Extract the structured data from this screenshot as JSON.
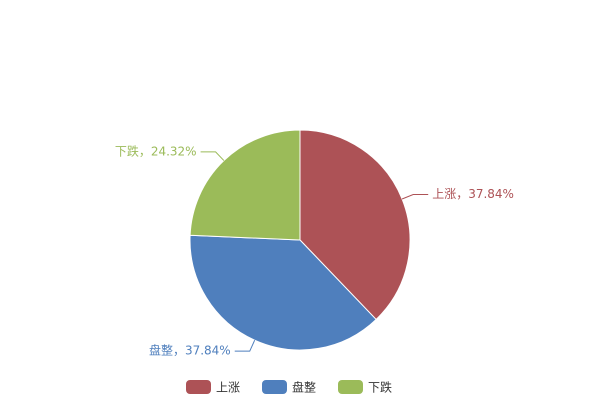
{
  "chart_data": {
    "type": "pie",
    "categories": [
      "上涨",
      "盘整",
      "下跌"
    ],
    "values": [
      37.84,
      37.84,
      24.32
    ],
    "value_labels": [
      "上涨，37.84%",
      "盘整，37.84%",
      "下跌，24.32%"
    ],
    "colors": [
      "#ad5256",
      "#4f7fbd",
      "#9bbb59"
    ]
  }
}
